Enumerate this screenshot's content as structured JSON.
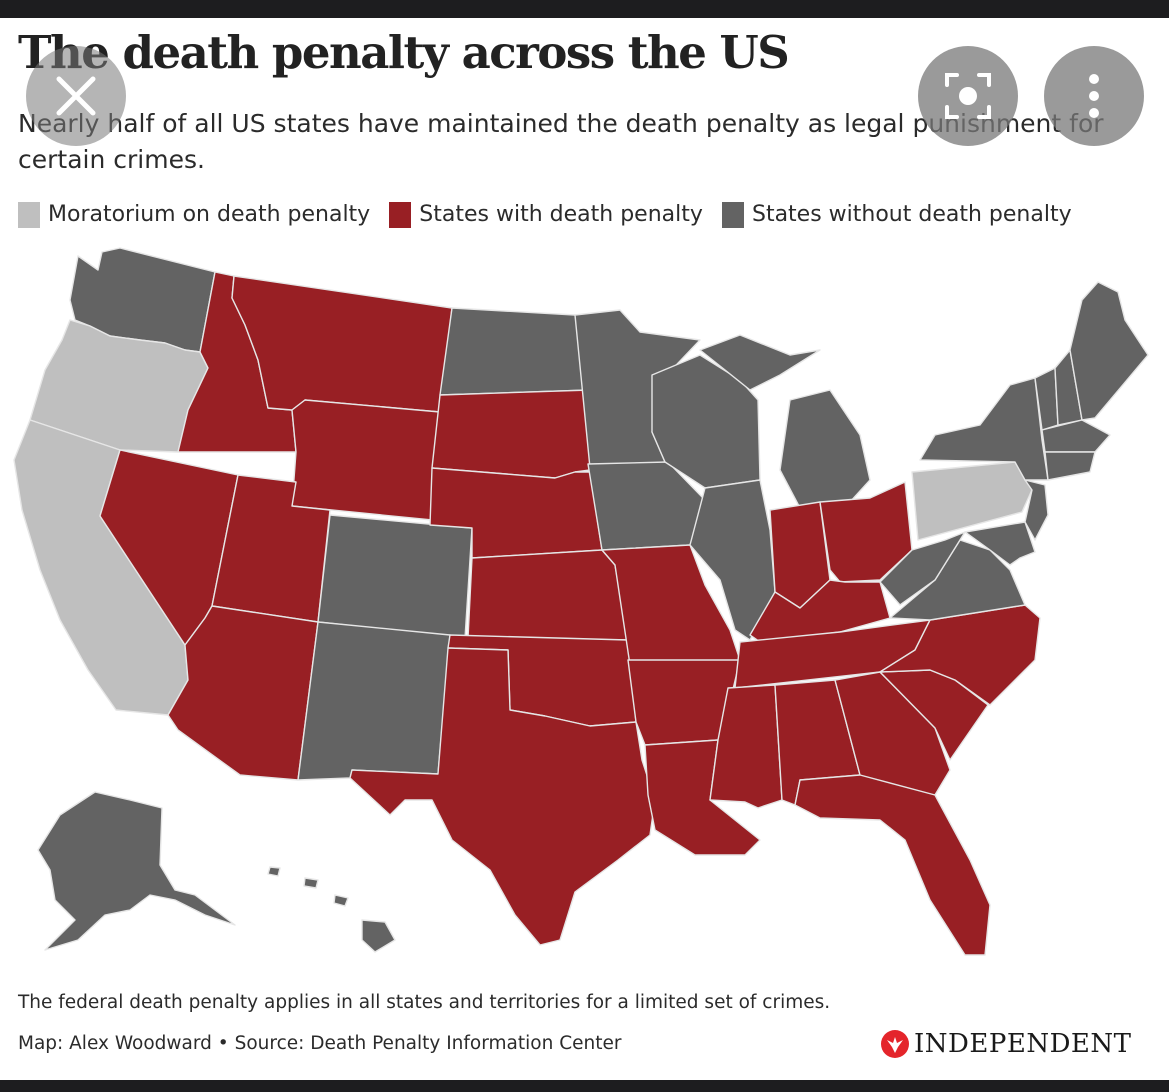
{
  "header": {
    "title": "The death penalty across the US",
    "subtitle": "Nearly half of all US states have maintained the death penalty as legal punishment for certain crimes."
  },
  "legend": [
    {
      "label": "Moratorium on death penalty",
      "color": "#bfbfbf"
    },
    {
      "label": "States with death penalty",
      "color": "#981f24"
    },
    {
      "label": "States without death penalty",
      "color": "#636363"
    }
  ],
  "colors": {
    "moratorium": "#bfbfbf",
    "death_penalty": "#981f24",
    "no_death_penalty": "#636363",
    "border": "#e6e6e6"
  },
  "map": {
    "moratorium_states": [
      "Oregon",
      "California",
      "Pennsylvania"
    ],
    "death_penalty_states": [
      "Montana",
      "Idaho",
      "Wyoming",
      "Nevada",
      "Utah",
      "Arizona",
      "South Dakota",
      "Nebraska",
      "Kansas",
      "Oklahoma",
      "Texas",
      "Missouri",
      "Arkansas",
      "Louisiana",
      "Indiana",
      "Ohio",
      "Kentucky",
      "Tennessee",
      "Mississippi",
      "Alabama",
      "Georgia",
      "Florida",
      "South Carolina",
      "North Carolina"
    ],
    "no_death_penalty_states": [
      "Washington",
      "North Dakota",
      "Minnesota",
      "Wisconsin",
      "Iowa",
      "Illinois",
      "Michigan",
      "Colorado",
      "New Mexico",
      "West Virginia",
      "Virginia",
      "Maryland",
      "Delaware",
      "New Jersey",
      "New York",
      "Connecticut",
      "Rhode Island",
      "Massachusetts",
      "Vermont",
      "New Hampshire",
      "Maine",
      "Alaska",
      "Hawaii"
    ]
  },
  "footer": {
    "note": "The federal death penalty applies in all states and territories for a limited set of crimes.",
    "credit": "Map: Alex Woodward • Source: Death Penalty Information Center",
    "brand": "INDEPENDENT"
  },
  "overlay": {
    "close_icon": "close-icon",
    "lens_icon": "lens-icon",
    "more_icon": "more-vertical-icon"
  }
}
